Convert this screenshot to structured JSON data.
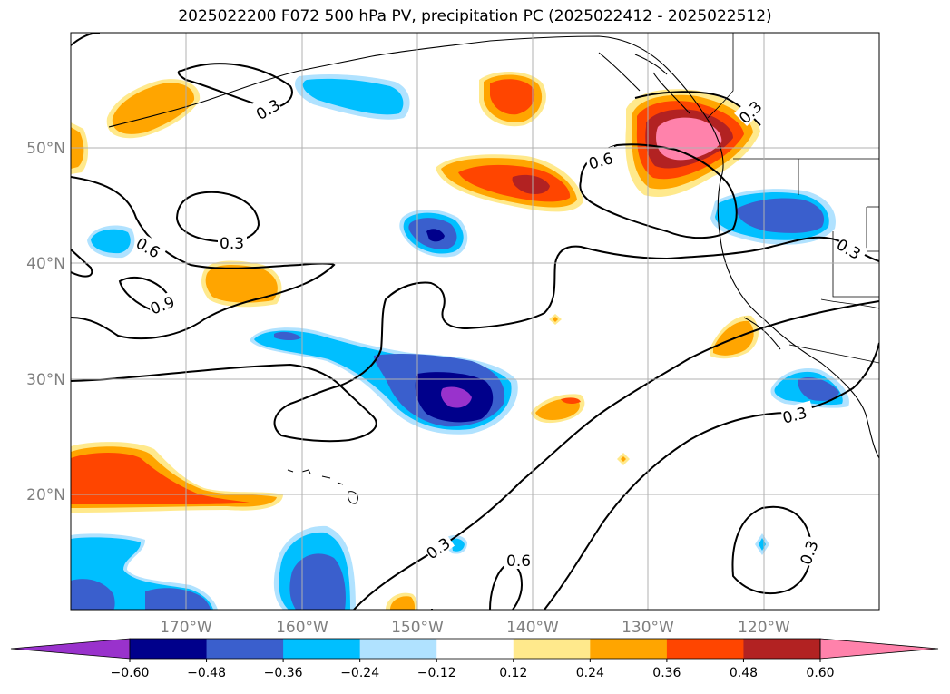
{
  "title": "2025022200 F072 500 hPa PV, precipitation PC (2025022412 - 2025022512)",
  "map": {
    "lon_labels": [
      "170°W",
      "160°W",
      "150°W",
      "140°W",
      "130°W",
      "120°W"
    ],
    "lat_labels": [
      "50°N",
      "40°N",
      "30°N",
      "20°N"
    ],
    "contour_labels": [
      "0.3",
      "0.3",
      "0.6",
      "0.9",
      "0.6",
      "0.3",
      "0.3",
      "0.3",
      "0.3",
      "0.6",
      "0.3",
      "0.3"
    ]
  },
  "colorbar": {
    "ticks": [
      "−0.60",
      "−0.48",
      "−0.36",
      "−0.24",
      "−0.12",
      "0.12",
      "0.24",
      "0.36",
      "0.48",
      "0.60"
    ],
    "colors": [
      "#9932cc",
      "#00008b",
      "#3a5fcd",
      "#00bfff",
      "#b0e2ff",
      "#ffffff",
      "#ffe98c",
      "#ffa500",
      "#ff4500",
      "#b22222",
      "#ff82ab"
    ]
  },
  "chart_data": {
    "type": "heatmap",
    "title": "2025022200 F072 500 hPa PV, precipitation PC (2025022412 - 2025022512)",
    "xlabel": "",
    "ylabel": "",
    "x_ticks": [
      "170°W",
      "160°W",
      "150°W",
      "140°W",
      "130°W",
      "120°W"
    ],
    "y_ticks": [
      "50°N",
      "40°N",
      "30°N",
      "20°N"
    ],
    "color_levels": [
      -0.6,
      -0.48,
      -0.36,
      -0.24,
      -0.12,
      0.12,
      0.24,
      0.36,
      0.48,
      0.6
    ],
    "contour_levels": [
      0.3,
      0.6,
      0.9
    ],
    "grid": true,
    "colorbar": "bottom"
  }
}
